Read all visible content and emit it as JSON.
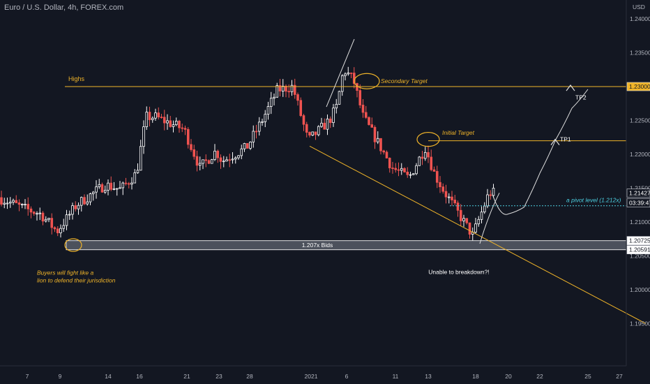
{
  "header": {
    "title": "Euro / U.S. Dollar, 4h, FOREX.com"
  },
  "colors": {
    "background": "#131722",
    "up": "#ffffff",
    "down": "#ef5350",
    "annotation": "#f0b429",
    "pivot": "#4dd0e1",
    "axis_text": "#b2b5be"
  },
  "chart_data": {
    "type": "candlestick",
    "currency": "USD",
    "ylim": [
      1.1947,
      1.2415
    ],
    "y_ticks": [
      "1.19500",
      "1.20000",
      "1.20500",
      "1.21000",
      "1.21500",
      "1.22000",
      "1.22500",
      "1.23000",
      "1.23500",
      "1.24000"
    ],
    "x_ticks": [
      {
        "label": "7",
        "x": "2020-12-07"
      },
      {
        "label": "9",
        "x": "2020-12-09"
      },
      {
        "label": "14",
        "x": "2020-12-14"
      },
      {
        "label": "16",
        "x": "2020-12-16"
      },
      {
        "label": "21",
        "x": "2020-12-21"
      },
      {
        "label": "23",
        "x": "2020-12-23"
      },
      {
        "label": "28",
        "x": "2020-12-28"
      },
      {
        "label": "2021",
        "x": "2021-01-01"
      },
      {
        "label": "6",
        "x": "2021-01-06"
      },
      {
        "label": "11",
        "x": "2021-01-11"
      },
      {
        "label": "13",
        "x": "2021-01-13"
      },
      {
        "label": "18",
        "x": "2021-01-18"
      },
      {
        "label": "20",
        "x": "2021-01-20"
      },
      {
        "label": "22",
        "x": "2021-01-22"
      },
      {
        "label": "25",
        "x": "2021-01-25"
      },
      {
        "label": "27",
        "x": "2021-01-27"
      }
    ],
    "close_path": [
      [
        "2020-12-04",
        1.2137
      ],
      [
        "2020-12-07",
        1.212
      ],
      [
        "2020-12-08",
        1.2112
      ],
      [
        "2020-12-09",
        1.2086
      ],
      [
        "2020-12-10",
        1.2105
      ],
      [
        "2020-12-11",
        1.2125
      ],
      [
        "2020-12-14",
        1.2155
      ],
      [
        "2020-12-15",
        1.2148
      ],
      [
        "2020-12-16",
        1.2172
      ],
      [
        "2020-12-17",
        1.2255
      ],
      [
        "2020-12-18",
        1.2255
      ],
      [
        "2020-12-21",
        1.2237
      ],
      [
        "2020-12-22",
        1.218
      ],
      [
        "2020-12-23",
        1.2205
      ],
      [
        "2020-12-24",
        1.219
      ],
      [
        "2020-12-28",
        1.221
      ],
      [
        "2020-12-29",
        1.225
      ],
      [
        "2020-12-30",
        1.2295
      ],
      [
        "2020-12-31",
        1.23
      ],
      [
        "2021-01-01",
        1.222
      ],
      [
        "2021-01-04",
        1.225
      ],
      [
        "2021-01-05",
        1.227
      ],
      [
        "2021-01-06",
        1.2325
      ],
      [
        "2021-01-07",
        1.231
      ],
      [
        "2021-01-08",
        1.2255
      ],
      [
        "2021-01-11",
        1.218
      ],
      [
        "2021-01-12",
        1.2165
      ],
      [
        "2021-01-13",
        1.221
      ],
      [
        "2021-01-14",
        1.217
      ],
      [
        "2021-01-15",
        1.2145
      ],
      [
        "2021-01-18",
        1.208
      ],
      [
        "2021-01-19",
        1.2143
      ]
    ],
    "current_price": "1.21427",
    "countdown": "03:39:47",
    "levels": [
      {
        "label": "Highs",
        "price": 1.23,
        "tag": "1.23000"
      },
      {
        "label": "Initial Target",
        "price": 1.222
      },
      {
        "label": "a pivot level (1.212x)",
        "price": 1.2124
      },
      {
        "label": "1.207x Bids",
        "top": 1.20725,
        "bottom": 1.20591,
        "tags": [
          "1.20725",
          "1.20591"
        ]
      }
    ],
    "annotations": {
      "secondary_target": "Secondary Target",
      "initial_target": "Initial Target",
      "tp1": "TP1",
      "tp2": "TP2",
      "buyers": [
        "Buyers will fight like a",
        "lion to defend their jurisdiction"
      ],
      "unable": "Unable to breakdown?!"
    },
    "projection": [
      [
        "2021-01-19",
        1.2143
      ],
      [
        "2021-01-20",
        1.2112
      ],
      [
        "2021-01-21",
        1.2122
      ],
      [
        "2021-01-22",
        1.2172
      ],
      [
        "2021-01-23",
        1.2222
      ],
      [
        "2021-01-24",
        1.2268
      ],
      [
        "2021-01-25",
        1.2296
      ]
    ]
  }
}
